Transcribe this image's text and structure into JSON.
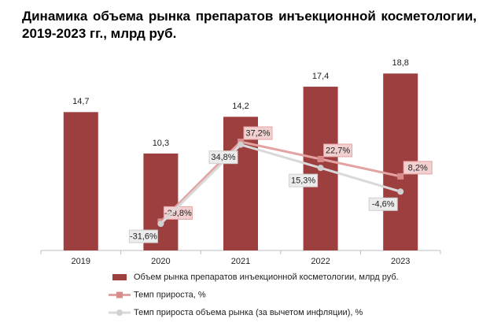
{
  "chart_data": {
    "type": "bar",
    "title": "Динамика объема рынка препаратов инъекционной косметологии, 2019-2023 гг., млрд руб.",
    "categories": [
      "2019",
      "2020",
      "2021",
      "2022",
      "2023"
    ],
    "ylim": [
      0,
      20
    ],
    "y2lim": [
      -54,
      104
    ],
    "series": [
      {
        "name": "Объем рынка препаратов инъекционной косметологии, млрд руб.",
        "type": "bar",
        "color": "#9e3f3f",
        "values": [
          14.7,
          10.3,
          14.2,
          17.4,
          18.8
        ],
        "value_labels": [
          "14,7",
          "10,3",
          "14,2",
          "17,4",
          "18,8"
        ]
      },
      {
        "name": "Темп прироста, %",
        "type": "line",
        "axis": "y2",
        "color": "#e3a3a3",
        "marker": "square",
        "values": [
          null,
          -29.8,
          37.2,
          22.7,
          8.2
        ],
        "value_labels": [
          null,
          "-29,8%",
          "37,2%",
          "22,7%",
          "8,2%"
        ]
      },
      {
        "name": "Темп прироста объема рынка (за вычетом инфляции), %",
        "type": "line",
        "axis": "y2",
        "color": "#d9d9d9",
        "marker": "circle",
        "values": [
          null,
          -31.6,
          34.8,
          15.3,
          -4.6
        ],
        "value_labels": [
          null,
          "-31,6%",
          "34,8%",
          "15,3%",
          "-4,6%"
        ]
      }
    ]
  }
}
